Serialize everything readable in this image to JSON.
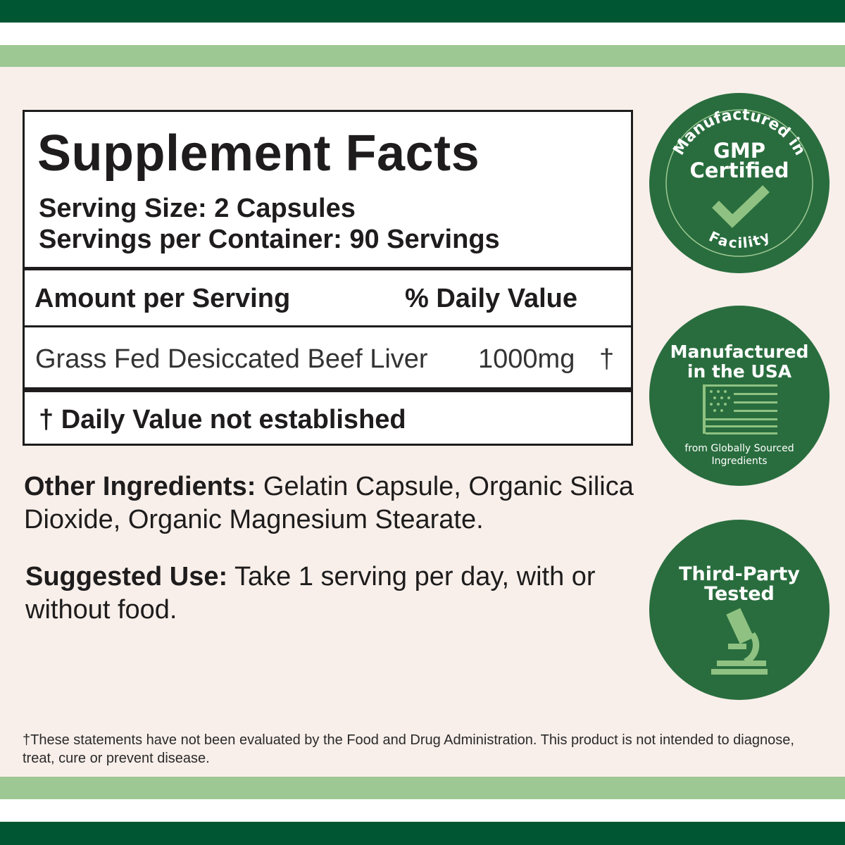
{
  "colors": {
    "dark_green": "#005632",
    "light_green": "#9dc893",
    "background": "#f8efea",
    "badge_green": "#296d3e",
    "badge_accent": "#8fc282"
  },
  "facts": {
    "title": "Supplement Facts",
    "serving_size": "Serving Size: 2 Capsules",
    "servings_per_container": "Servings per Container: 90 Servings",
    "amount_header": "Amount per Serving",
    "dv_header": "% Daily Value",
    "ingredient": {
      "name": "Grass Fed Desiccated Beef Liver",
      "amount": "1000mg",
      "dv": "†"
    },
    "footnote": "† Daily Value not established"
  },
  "other_ingredients": {
    "label": "Other Ingredients:",
    "text": " Gelatin Capsule, Organic Silica Dioxide, Organic Magnesium Stearate."
  },
  "suggested_use": {
    "label": "Suggested Use:",
    "text": " Take 1 serving per day, with or without food."
  },
  "disclaimer": "†These statements have not been evaluated by the Food and Drug Administration. This product is not intended to diagnose, treat, cure or prevent disease.",
  "badges": [
    {
      "top_arc": "Manufactured in",
      "line1": "GMP",
      "line2": "Certified",
      "bottom_arc": "Facility",
      "icon": "check-icon"
    },
    {
      "line1": "Manufactured",
      "line2": "in the USA",
      "sub1": "from Globally Sourced",
      "sub2": "Ingredients",
      "icon": "us-flag-icon"
    },
    {
      "line1": "Third-Party",
      "line2": "Tested",
      "icon": "microscope-icon"
    }
  ]
}
